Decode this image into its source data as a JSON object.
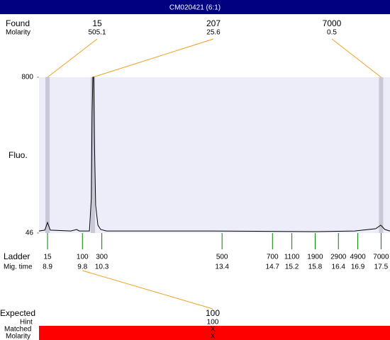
{
  "header": {
    "title": "CM020421 (6:1)"
  },
  "found": {
    "label": "Found",
    "molarity_label": "Molarity",
    "peaks": [
      {
        "size": 15,
        "molarity": 505.1,
        "time": 8.9
      },
      {
        "size": 207,
        "molarity": 25.6,
        "time": 10.07
      },
      {
        "size": 7000,
        "molarity": 0.5,
        "time": 17.5
      }
    ]
  },
  "chart_data": {
    "type": "line",
    "ylabel": "Fluo.",
    "color": "#000000",
    "xlim": [
      8.68,
      17.73
    ],
    "ylim": [
      46,
      800
    ],
    "yticks": [
      46,
      800
    ],
    "x": [
      8.68,
      8.83,
      8.9,
      8.97,
      9.5,
      9.65,
      9.72,
      9.98,
      10.03,
      10.05,
      10.07,
      10.09,
      10.11,
      10.14,
      10.2,
      10.27,
      10.42,
      13.16,
      15.81,
      16.82,
      17.36,
      17.49,
      17.6,
      17.73
    ],
    "values": [
      56,
      60,
      97,
      60,
      56,
      63,
      56,
      56,
      214,
      625,
      800,
      800,
      488,
      180,
      84,
      63,
      56,
      56,
      53,
      56,
      67,
      84,
      63,
      56
    ]
  },
  "ladder": {
    "label": "Ladder",
    "time_label": "Mig. time",
    "sizes": [
      15,
      100,
      300,
      500,
      700,
      1100,
      1900,
      2900,
      4900,
      7000
    ],
    "times": [
      8.9,
      9.8,
      10.3,
      13.4,
      14.7,
      15.2,
      15.8,
      16.4,
      16.9,
      17.5
    ]
  },
  "expected": {
    "label": "Expected",
    "size": 100,
    "hint_label": "Hint",
    "hint": 100,
    "matched_label": "Matched",
    "matched": "X",
    "molarity_label": "Molarity",
    "molarity": "X"
  }
}
